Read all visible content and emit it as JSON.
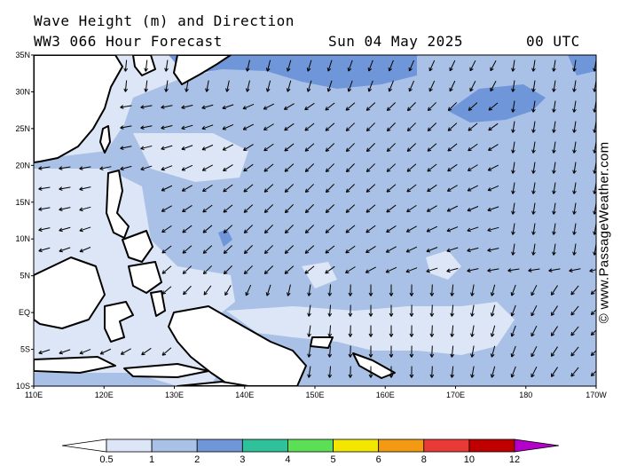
{
  "header": {
    "title": "Wave Height (m) and Direction",
    "model": "WW3 066 Hour Forecast",
    "date": "Sun 04 May 2025",
    "time": "00 UTC"
  },
  "watermark": "© www.PassageWeather.com",
  "map": {
    "lat_labels": [
      "35N",
      "30N",
      "25N",
      "20N",
      "15N",
      "10N",
      "5N",
      "EQ",
      "5S",
      "10S"
    ],
    "lon_labels": [
      "110E",
      "120E",
      "130E",
      "140E",
      "150E",
      "160E",
      "170E",
      "180",
      "170W"
    ],
    "lon_range": [
      "110E",
      "170W"
    ],
    "lat_range": [
      "10S",
      "35N"
    ]
  },
  "legend": {
    "labels": [
      "0.5",
      "1",
      "2",
      "3",
      "4",
      "5",
      "6",
      "8",
      "10",
      "12"
    ],
    "colors": [
      "#ffffff",
      "#dde6f6",
      "#a9c1e6",
      "#6f96d8",
      "#2ec19a",
      "#5be055",
      "#f3e600",
      "#f39a12",
      "#ea3a38",
      "#c00000",
      "#b400c8"
    ]
  },
  "colors": {
    "wave_0_5_1": "#dde6f6",
    "wave_1_2": "#a9c1e6",
    "wave_2_3": "#6f96d8",
    "land": "#ffffff"
  }
}
